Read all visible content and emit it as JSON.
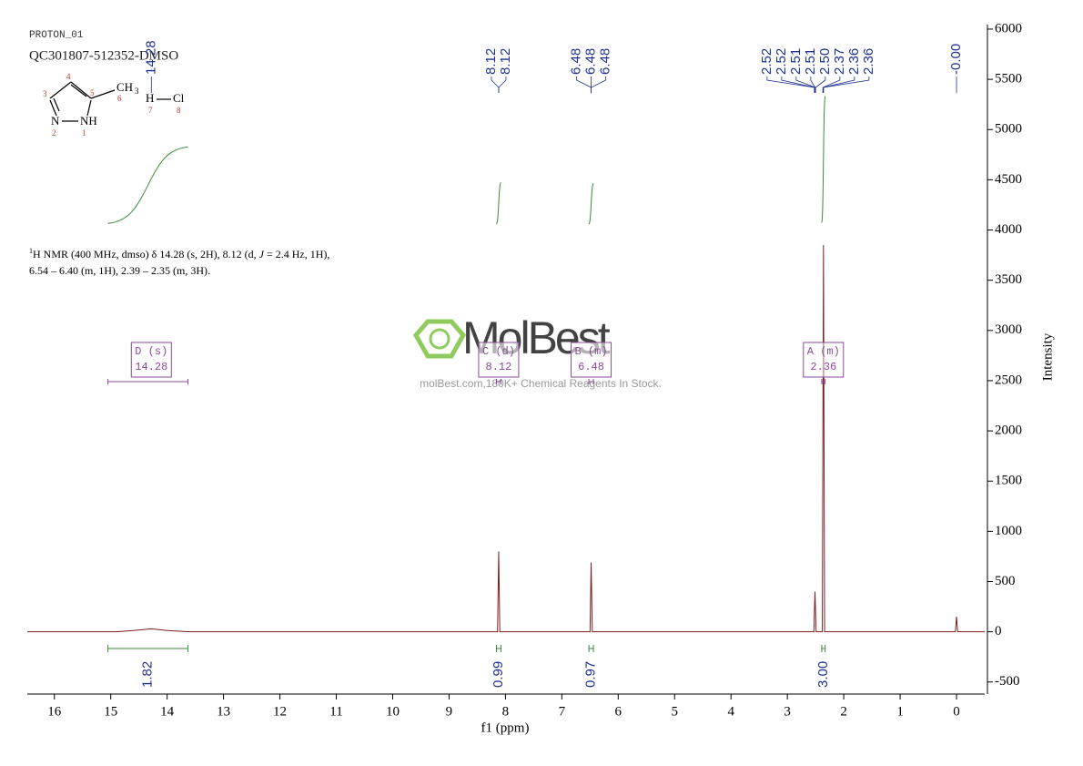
{
  "header": {
    "experiment": "PROTON_01",
    "sample": "QC301807-512352-DMSO"
  },
  "structure": {
    "atoms": [
      "N",
      "NH",
      "CH",
      "3",
      "H",
      "Cl"
    ],
    "numbers": [
      "1",
      "2",
      "3",
      "4",
      "5",
      "6",
      "7",
      "8"
    ]
  },
  "description": {
    "sup": "1",
    "line1": "H NMR (400 MHz, dmso) δ 14.28 (s, 2H), 8.12 (d, ",
    "italic": "J",
    "line1_end": " = 2.4 Hz, 1H),",
    "line2": "6.54 – 6.40 (m, 1H), 2.39 – 2.35 (m, 3H)."
  },
  "watermark": {
    "brand": "MolBest",
    "tagline": "molBest.com,180K+ Chemical Reagents In Stock."
  },
  "chart_data": {
    "type": "nmr",
    "x_label": "f1 (ppm)",
    "y_label": "Intensity",
    "xlim": [
      16.48,
      -0.5
    ],
    "ylim": [
      -620,
      6045
    ],
    "xticks": [
      16,
      15,
      14,
      13,
      12,
      11,
      10,
      9,
      8,
      7,
      6,
      5,
      4,
      3,
      2,
      1,
      0
    ],
    "yticks": [
      -500,
      0,
      500,
      1000,
      1500,
      2000,
      2500,
      3000,
      3500,
      4000,
      4500,
      5000,
      5500,
      6000
    ],
    "color": "#7a1f1f",
    "spectrum": {
      "x": [
        16.48,
        14.9,
        14.6,
        14.28,
        14.0,
        13.6,
        8.14,
        8.12,
        8.1,
        6.5,
        6.48,
        6.46,
        2.53,
        2.51,
        2.49,
        2.38,
        2.36,
        2.34,
        0.02,
        0,
        -0.02,
        -0.5
      ],
      "values": [
        0,
        0,
        12,
        30,
        12,
        0,
        0,
        800,
        0,
        0,
        690,
        0,
        0,
        400,
        0,
        0,
        3850,
        0,
        0,
        150,
        0,
        0
      ]
    },
    "peaks": {
      "values": [
        14.28,
        8.12,
        8.12,
        6.48,
        6.48,
        6.48,
        2.52,
        2.52,
        2.51,
        2.51,
        2.5,
        2.37,
        2.36,
        2.36,
        0
      ],
      "value_labels": [
        "14.28",
        "8.12",
        "8.12",
        "6.48",
        "6.48",
        "6.48",
        "2.52",
        "2.52",
        "2.51",
        "2.51",
        "2.50",
        "2.37",
        "2.36",
        "2.36",
        "-0.00"
      ]
    },
    "integrals": {
      "ranges": [
        [
          15.05,
          13.63
        ],
        [
          8.16,
          8.08
        ],
        [
          6.52,
          6.44
        ],
        [
          2.39,
          2.33
        ]
      ],
      "values": [
        1.82,
        0.99,
        0.97,
        3
      ],
      "value_labels": [
        "1.82",
        "0.99",
        "0.97",
        "3.00"
      ]
    },
    "multiplets": {
      "names": [
        "D (s)",
        "C (d)",
        "B (m)",
        "A (m)"
      ],
      "values": [
        14.28,
        8.12,
        6.48,
        2.36
      ],
      "value_labels": [
        "14.28",
        "8.12",
        "6.48",
        "2.36"
      ]
    }
  }
}
